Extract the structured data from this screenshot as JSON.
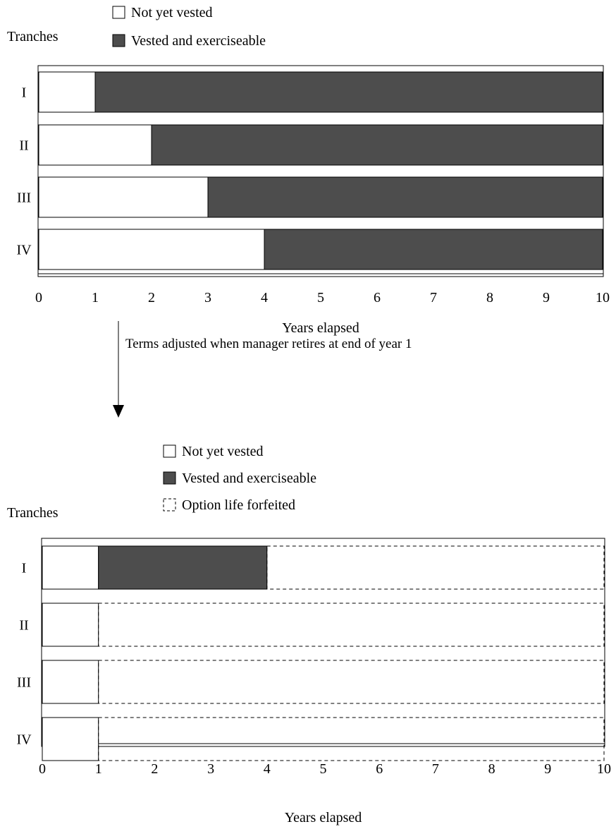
{
  "colors": {
    "vested": "#4d4d4d",
    "unvested": "#ffffff",
    "stroke": "#000000"
  },
  "chart_data": [
    {
      "type": "bar",
      "orientation": "horizontal",
      "stacked": true,
      "tranches_label": "Tranches",
      "xlabel": "Years elapsed",
      "xlim": [
        0,
        10
      ],
      "xticks": [
        "0",
        "1",
        "2",
        "3",
        "4",
        "5",
        "6",
        "7",
        "8",
        "9",
        "10"
      ],
      "categories": [
        "I",
        "II",
        "III",
        "IV"
      ],
      "legend": [
        {
          "key": "not_vested",
          "label": "Not yet vested",
          "style": "white"
        },
        {
          "key": "vested",
          "label": "Vested and exerciseable",
          "style": "dark"
        }
      ],
      "series": [
        {
          "name": "Not yet vested",
          "key": "not_vested",
          "values": [
            1,
            2,
            3,
            4
          ]
        },
        {
          "name": "Vested and exerciseable",
          "key": "vested",
          "values": [
            9,
            8,
            7,
            6
          ]
        }
      ]
    },
    {
      "type": "bar",
      "orientation": "horizontal",
      "stacked": true,
      "tranches_label": "Tranches",
      "xlabel": "Years elapsed",
      "xlim": [
        0,
        10
      ],
      "xticks": [
        "0",
        "1",
        "2",
        "3",
        "4",
        "5",
        "6",
        "7",
        "8",
        "9",
        "10"
      ],
      "categories": [
        "I",
        "II",
        "III",
        "IV"
      ],
      "legend": [
        {
          "key": "not_vested",
          "label": "Not yet vested",
          "style": "white"
        },
        {
          "key": "vested",
          "label": "Vested and exerciseable",
          "style": "dark"
        },
        {
          "key": "forfeited",
          "label": "Option life forfeited",
          "style": "dashed"
        }
      ],
      "series": [
        {
          "name": "Not yet vested",
          "key": "not_vested",
          "values": [
            1,
            1,
            1,
            1
          ]
        },
        {
          "name": "Vested and exerciseable",
          "key": "vested",
          "values": [
            3,
            0,
            0,
            0
          ]
        },
        {
          "name": "Option life forfeited",
          "key": "forfeited",
          "values": [
            6,
            9,
            9,
            9
          ]
        }
      ]
    }
  ],
  "transition": {
    "label": "Terms adjusted when manager retires at end of year 1"
  }
}
